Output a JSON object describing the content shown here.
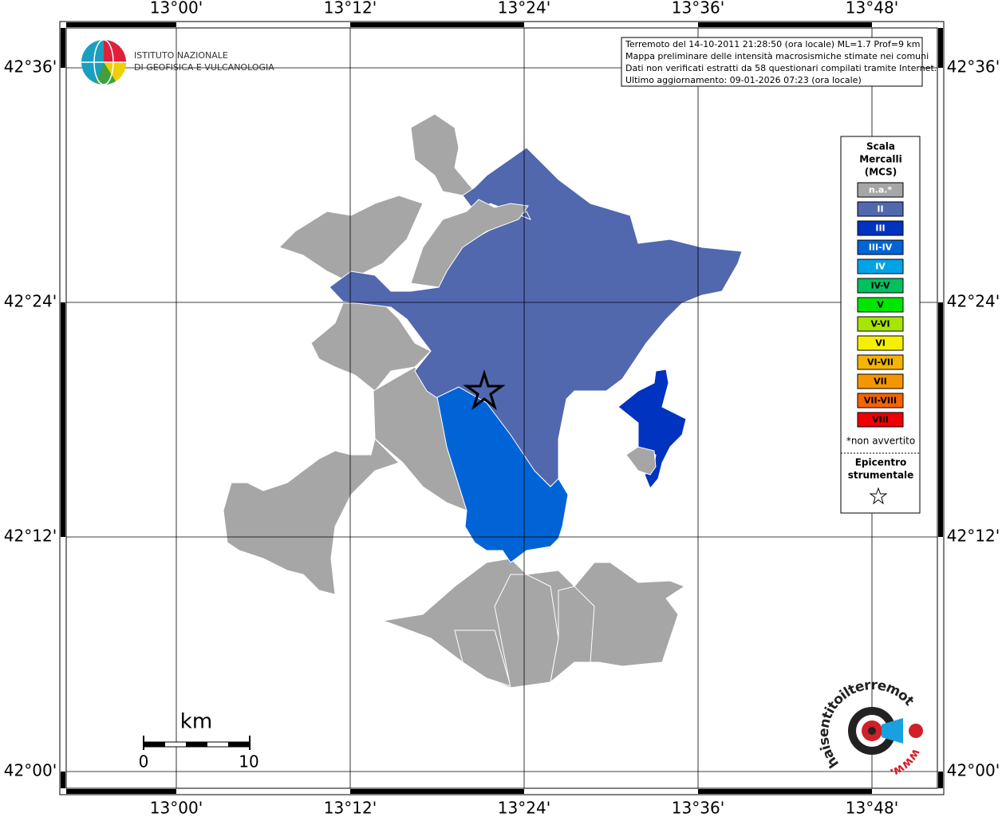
{
  "header": {
    "institute": [
      "ISTITUTO NAZIONALE",
      "DI GEOFISICA E VULCANOLOGIA"
    ]
  },
  "info": [
    "Terremoto del 14-10-2011 21:28:50 (ora locale) ML=1.7 Prof=9 km",
    "Mappa preliminare delle intensità macrosismiche stimate nei comuni",
    "Dati non verificati estratti da 58 questionari compilati tramite Internet.",
    "Ultimo aggiornamento: 09-01-2026 07:23 (ora locale)"
  ],
  "frame": {
    "top": [
      "13°00'",
      "13°12'",
      "13°24'",
      "13°36'",
      "13°48'"
    ],
    "bottom": [
      "13°00'",
      "13°12'",
      "13°24'",
      "13°36'",
      "13°48'"
    ],
    "left": [
      "42°36'",
      "42°24'",
      "42°12'",
      "42°00'"
    ],
    "right": [
      "42°36'",
      "42°24'",
      "42°12'",
      "42°00'"
    ]
  },
  "legend": {
    "title": [
      "Scala",
      "Mercalli",
      "(MCS)"
    ],
    "classes": [
      {
        "label": "n.a.*",
        "color": "#a6a6a6"
      },
      {
        "label": "II",
        "color": "#5167ae"
      },
      {
        "label": "III",
        "color": "#0033bf"
      },
      {
        "label": "III-IV",
        "color": "#0064d6"
      },
      {
        "label": "IV",
        "color": "#00a3e6"
      },
      {
        "label": "IV-V",
        "color": "#00c060"
      },
      {
        "label": "V",
        "color": "#00e600"
      },
      {
        "label": "V-VI",
        "color": "#a6e600"
      },
      {
        "label": "VI",
        "color": "#f5f000"
      },
      {
        "label": "VI-VII",
        "color": "#f5b400"
      },
      {
        "label": "VII",
        "color": "#f59600"
      },
      {
        "label": "VII-VIII",
        "color": "#f56400"
      },
      {
        "label": "VIII",
        "color": "#f00000"
      }
    ],
    "note": "*non avvertito",
    "epicenter": [
      "Epicentro",
      "strumentale"
    ]
  },
  "scalebar": {
    "unit": "km",
    "labels": [
      "0",
      "10"
    ]
  },
  "footer_logo": {
    "name": "haisentitoilterremoto.it",
    "prefix": "www."
  }
}
